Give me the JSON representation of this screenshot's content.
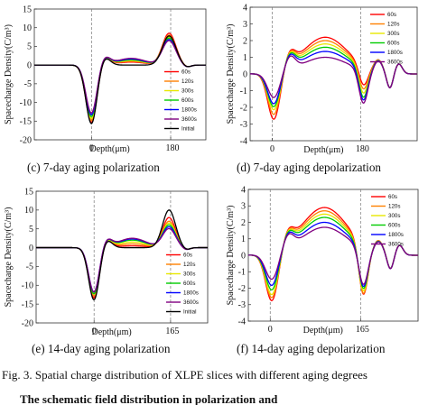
{
  "figure_caption": "Fig. 3.   Spatial charge distribution of XLPE slices with different aging degrees",
  "bottom_text": "The schematic field distribution in polarization and",
  "chart_data": [
    {
      "id": "c",
      "type": "line",
      "caption": "(c) 7-day aging polarization",
      "ylabel": "Spacecharge Density(C/m³)",
      "xlabel": "Depth(μm)",
      "ylim": [
        -20,
        15
      ],
      "yticks": [
        -20,
        -15,
        -10,
        -5,
        0,
        5,
        10,
        15
      ],
      "xticks": [
        {
          "value": 0,
          "label": "0"
        },
        {
          "value": 180,
          "label": "180"
        }
      ],
      "xlim": [
        -130,
        260
      ],
      "dashed_x": [
        0,
        180
      ],
      "legend_position": "bottom-right",
      "series": [
        {
          "name": "60s",
          "color": "#ff0000",
          "anode": 8.5,
          "neg": -15.5,
          "mid": 0.8
        },
        {
          "name": "120s",
          "color": "#ff8000",
          "anode": 8.0,
          "neg": -15.0,
          "mid": 1.0
        },
        {
          "name": "300s",
          "color": "#e8e800",
          "anode": 7.5,
          "neg": -14.5,
          "mid": 1.2
        },
        {
          "name": "600s",
          "color": "#00cc00",
          "anode": 7.2,
          "neg": -14.0,
          "mid": 1.4
        },
        {
          "name": "1800s",
          "color": "#0000ff",
          "anode": 6.8,
          "neg": -13.5,
          "mid": 1.6
        },
        {
          "name": "3600s",
          "color": "#800080",
          "anode": 6.5,
          "neg": -13.0,
          "mid": 1.8
        },
        {
          "name": "Initial",
          "color": "#000000",
          "anode": 7.8,
          "neg": -15.8,
          "mid": 0.0
        }
      ]
    },
    {
      "id": "d",
      "type": "line",
      "caption": "(d) 7-day aging depolarization",
      "ylabel": "Spacecharge Density(C/m³)",
      "xlabel": "Depth(μm)",
      "ylim": [
        -4,
        4
      ],
      "yticks": [
        -4,
        -3,
        -2,
        -1,
        0,
        1,
        2,
        3,
        4
      ],
      "xticks": [
        {
          "value": 0,
          "label": "0"
        },
        {
          "value": 180,
          "label": "180"
        }
      ],
      "xlim": [
        -45,
        295
      ],
      "dashed_x": [
        0,
        180
      ],
      "legend_position": "top-right",
      "series": [
        {
          "name": "60s",
          "color": "#ff0000",
          "dip": -2.9,
          "hump": 2.2,
          "dip2": -1.2
        },
        {
          "name": "120s",
          "color": "#ff8000",
          "dip": -2.6,
          "hump": 2.0,
          "dip2": -1.4
        },
        {
          "name": "300s",
          "color": "#e8e800",
          "dip": -2.3,
          "hump": 1.8,
          "dip2": -1.6
        },
        {
          "name": "600s",
          "color": "#00cc00",
          "dip": -2.1,
          "hump": 1.6,
          "dip2": -1.8
        },
        {
          "name": "1800s",
          "color": "#0000ff",
          "dip": -1.9,
          "hump": 1.35,
          "dip2": -1.9
        },
        {
          "name": "3600s",
          "color": "#800080",
          "dip": -1.5,
          "hump": 1.0,
          "dip2": -2.0
        }
      ]
    },
    {
      "id": "e",
      "type": "line",
      "caption": "(e) 14-day aging polarization",
      "ylabel": "Spacecharge Density(C/m³)",
      "xlabel": "Depth(μm)",
      "ylim": [
        -20,
        15
      ],
      "yticks": [
        -20,
        -15,
        -10,
        -5,
        0,
        5,
        10,
        15
      ],
      "xticks": [
        {
          "value": 0,
          "label": "0"
        },
        {
          "value": 165,
          "label": "165"
        }
      ],
      "xlim": [
        -125,
        245
      ],
      "dashed_x": [
        0,
        165
      ],
      "legend_position": "bottom-right",
      "series": [
        {
          "name": "60s",
          "color": "#ff0000",
          "anode": 8.0,
          "neg": -13.5,
          "mid": 0.5
        },
        {
          "name": "120s",
          "color": "#ff8000",
          "anode": 7.0,
          "neg": -13.0,
          "mid": 1.0
        },
        {
          "name": "300s",
          "color": "#e8e800",
          "anode": 6.5,
          "neg": -12.5,
          "mid": 1.5
        },
        {
          "name": "600s",
          "color": "#00cc00",
          "anode": 6.0,
          "neg": -12.5,
          "mid": 2.0
        },
        {
          "name": "1800s",
          "color": "#0000ff",
          "anode": 5.5,
          "neg": -12.0,
          "mid": 2.3
        },
        {
          "name": "3600s",
          "color": "#800080",
          "anode": 5.0,
          "neg": -12.0,
          "mid": 2.5
        },
        {
          "name": "Initial",
          "color": "#000000",
          "anode": 10.0,
          "neg": -14.0,
          "mid": 0.0
        }
      ]
    },
    {
      "id": "f",
      "type": "line",
      "caption": "(f) 14-day aging depolarization",
      "ylabel": "Spacecharge Density(C/m³)",
      "xlabel": "Depth(μm)",
      "ylim": [
        -4,
        4
      ],
      "yticks": [
        -4,
        -3,
        -2,
        -1,
        0,
        1,
        2,
        3,
        4
      ],
      "xticks": [
        {
          "value": 0,
          "label": "0"
        },
        {
          "value": 165,
          "label": "165"
        }
      ],
      "xlim": [
        -40,
        270
      ],
      "dashed_x": [
        0,
        165
      ],
      "legend_position": "top-right",
      "series": [
        {
          "name": "60s",
          "color": "#ff0000",
          "dip": -3.0,
          "hump": 2.9,
          "dip2": -3.1
        },
        {
          "name": "120s",
          "color": "#ff8000",
          "dip": -2.8,
          "hump": 2.7,
          "dip2": -3.0
        },
        {
          "name": "300s",
          "color": "#e8e800",
          "dip": -2.6,
          "hump": 2.5,
          "dip2": -2.8
        },
        {
          "name": "600s",
          "color": "#00cc00",
          "dip": -2.3,
          "hump": 2.3,
          "dip2": -2.6
        },
        {
          "name": "1800s",
          "color": "#0000ff",
          "dip": -2.0,
          "hump": 2.0,
          "dip2": -2.4
        },
        {
          "name": "3600s",
          "color": "#800080",
          "dip": -1.6,
          "hump": 1.7,
          "dip2": -2.2
        }
      ]
    }
  ]
}
